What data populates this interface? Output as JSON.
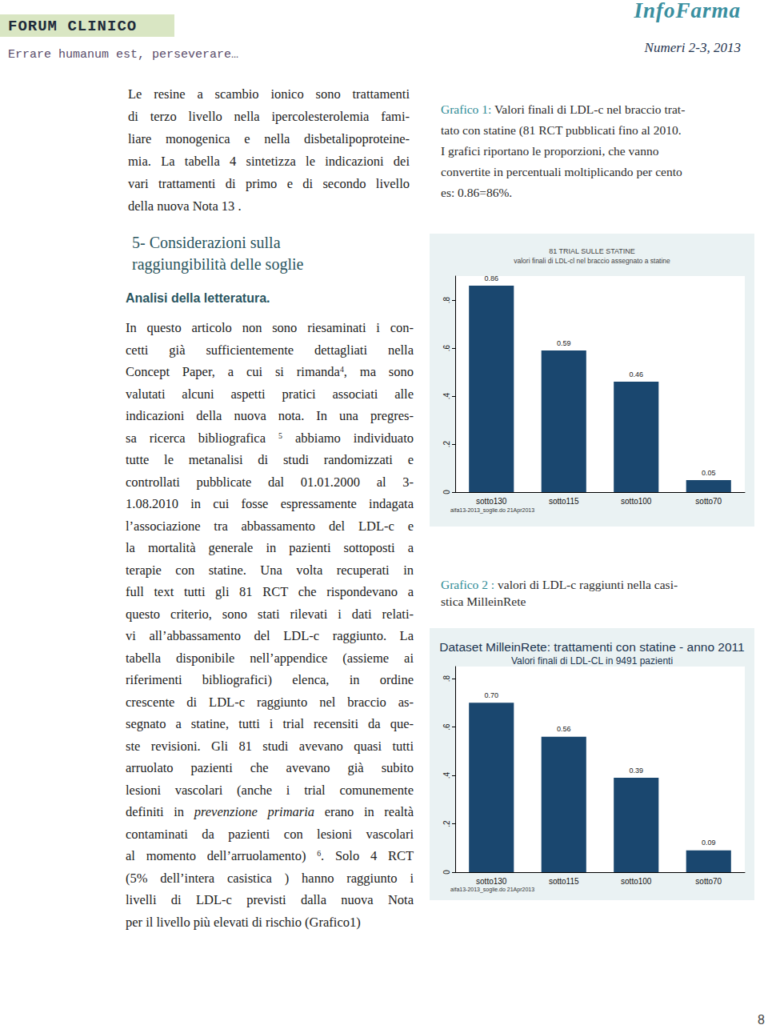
{
  "header": {
    "section": "FORUM CLINICO",
    "magazine": "InfoFarma",
    "motto": "Errare humanum est, perseverare…",
    "issue": "Numeri 2-3, 2013"
  },
  "intro": [
    "Le resine  a scambio ionico sono trattamenti",
    "di terzo livello nella ipercolesterolemia fami-",
    "liare monogenica e nella disbetalipoproteine-",
    "mia. La tabella 4 sintetizza le indicazioni dei",
    "vari trattamenti di primo e di secondo livello",
    "della nuova Nota 13 ."
  ],
  "section_heading": [
    "5- Considerazioni sulla",
    "raggiungibilità delle soglie"
  ],
  "subheading": "Analisi della letteratura.",
  "body": [
    "In questo articolo non sono riesaminati i con-",
    "cetti già sufficientemente dettagliati nella",
    [
      "Concept Paper, a cui si rimanda",
      {
        "sup": "4"
      },
      ", ma sono"
    ],
    "valutati alcuni aspetti pratici associati alle",
    "indicazioni della nuova nota. In una pregres-",
    [
      "sa ricerca bibliografica ",
      {
        "sup": "5"
      },
      " abbiamo individuato"
    ],
    "tutte le  metanalisi di studi randomizzati e",
    "controllati pubblicate dal 01.01.2000 al 3-",
    "1.08.2010 in cui fosse espressamente indagata",
    "l’associazione tra abbassamento del LDL-c  e",
    "la mortalità generale in pazienti sottoposti a",
    "terapie con statine. Una volta recuperati  in",
    "full text tutti gli 81 RCT che rispondevano a",
    "questo criterio,  sono stati rilevati i dati relati-",
    "vi  all’abbassamento del LDL-c  raggiunto. La",
    "tabella disponibile nell’appendice (assieme ai",
    "riferimenti bibliografici) elenca, in ordine",
    "crescente di LDL-c raggiunto nel braccio as-",
    "segnato a statine, tutti i trial recensiti da que-",
    "ste revisioni. Gli  81 studi avevano quasi tutti",
    "arruolato pazienti che avevano già subito",
    "lesioni vascolari (anche i trial comunemente",
    [
      "definiti in ",
      {
        "em": "prevenzione primaria"
      },
      " erano in realtà"
    ],
    "contaminati da pazienti con lesioni vascolari",
    [
      "al momento dell’arruolamento) ",
      {
        "sup": "6"
      },
      ". Solo 4 RCT"
    ],
    "(5% dell’intera casistica )  hanno raggiunto i",
    "livelli di LDL-c previsti dalla nuova Nota",
    "per il livello  più elevati di rischio (Grafico1)"
  ],
  "captions": [
    {
      "label": "Grafico 1:",
      "lines": [
        "Valori finali di LDL-c nel braccio trat-",
        "tato con statine (81 RCT pubblicati fino al 2010.",
        "I grafici riportano le proporzioni, che vanno",
        "convertite in percentuali moltiplicando per cento",
        "es: 0.86=86%."
      ]
    },
    {
      "label": "Grafico 2 :",
      "lines": [
        "valori di LDL-c raggiunti nella casi-",
        "stica MilleinRete"
      ]
    }
  ],
  "chart_data": [
    {
      "type": "bar",
      "title": "81 TRIAL SULLE STATINE",
      "subtitle": "valori finali di LDL-cl nel braccio assegnato a statine",
      "categories": [
        "sotto130",
        "sotto115",
        "sotto100",
        "sotto70"
      ],
      "values": [
        0.86,
        0.59,
        0.46,
        0.05
      ],
      "color": "#1a476f",
      "ylim": [
        0,
        0.9
      ],
      "yticks": [
        0,
        {
          "value": 0.2,
          "label": ".2"
        },
        {
          "value": 0.4,
          "label": ".4"
        },
        {
          "value": 0.6,
          "label": ".6"
        },
        {
          "value": 0.8,
          "label": ".8"
        }
      ],
      "grid": false,
      "data_labels": true,
      "note": "aifa13-2013_soglie.do 21Apr2013"
    },
    {
      "type": "bar",
      "title": "Dataset MilleinRete: trattamenti con statine - anno 2011",
      "subtitle": "Valori finali di LDL-CL in 9491 pazienti",
      "categories": [
        "sotto130",
        "sotto115",
        "sotto100",
        "sotto70"
      ],
      "values": [
        0.7,
        0.56,
        0.39,
        0.09
      ],
      "value_labels": [
        "0.70",
        "0.56",
        "0.39",
        "0.09"
      ],
      "color": "#1a476f",
      "ylim": [
        0,
        0.85
      ],
      "yticks": [
        0,
        {
          "value": 0.2,
          "label": ".2"
        },
        {
          "value": 0.4,
          "label": ".4"
        },
        {
          "value": 0.6,
          "label": ".6"
        },
        {
          "value": 0.8,
          "label": ".8"
        }
      ],
      "grid": false,
      "data_labels": true,
      "note": "aifa13-2013_soglie.do 21Apr2013"
    }
  ],
  "page_number": 8
}
